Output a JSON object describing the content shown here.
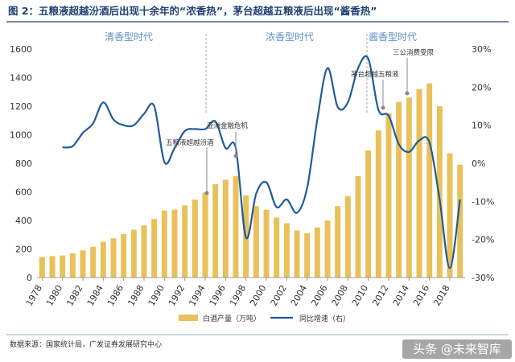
{
  "title": "图 2：五粮液超越汾酒后出现十余年的“浓香热”，茅台超越五粮液后出现“酱香热”",
  "source": "数据来源：国家统计局，广发证券发展研究中心",
  "watermark": "头条 @未来智库",
  "eras": [
    "清香型时代",
    "浓香型时代",
    "酱香型时代"
  ],
  "annotations": [
    "五粮液超越汾酒",
    "亚洲金融危机",
    "茅台超越五粮液",
    "三公消费受限"
  ],
  "legend": {
    "bar_label": "白酒产量（万吨）",
    "line_label": "同比增速（右）"
  },
  "colors": {
    "bar": "#e8c15a",
    "line": "#1f5c99",
    "title": "#1f3f74",
    "era": "#5b8fc3"
  },
  "chart_data": {
    "type": "bar",
    "x": [
      1978,
      1979,
      1980,
      1981,
      1982,
      1983,
      1984,
      1985,
      1986,
      1987,
      1988,
      1989,
      1990,
      1991,
      1992,
      1993,
      1994,
      1995,
      1996,
      1997,
      1998,
      1999,
      2000,
      2001,
      2002,
      2003,
      2004,
      2005,
      2006,
      2007,
      2008,
      2009,
      2010,
      2011,
      2012,
      2013,
      2014,
      2015,
      2016,
      2017,
      2018,
      2019
    ],
    "xticks": [
      "1978",
      "1980",
      "1982",
      "1984",
      "1986",
      "1988",
      "1990",
      "1992",
      "1994",
      "1996",
      "1998",
      "2000",
      "2002",
      "2004",
      "2006",
      "2008",
      "2010",
      "2012",
      "2014",
      "2016",
      "2018"
    ],
    "series": [
      {
        "name": "白酒产量（万吨）",
        "type": "bar",
        "axis": "left",
        "values": [
          144,
          150,
          155,
          170,
          190,
          215,
          250,
          275,
          305,
          335,
          365,
          410,
          470,
          475,
          505,
          545,
          595,
          655,
          685,
          710,
          575,
          500,
          475,
          420,
          380,
          330,
          310,
          350,
          400,
          500,
          570,
          710,
          890,
          1030,
          1150,
          1230,
          1260,
          1320,
          1360,
          1200,
          870,
          790
        ]
      },
      {
        "name": "同比增速（右）",
        "type": "line",
        "axis": "right",
        "values": [
          null,
          null,
          4.2,
          4.5,
          8.0,
          10.5,
          16.0,
          11.5,
          10.0,
          10.0,
          13.0,
          15.0,
          0.3,
          4.0,
          8.5,
          9.0,
          9.0,
          11.0,
          4.0,
          4.0,
          -19.5,
          -8.0,
          -5.0,
          -11.5,
          -9.5,
          -13.0,
          -6.5,
          11.5,
          25.0,
          14.8,
          16.0,
          25.0,
          27.5,
          14.0,
          12.5,
          5.0,
          3.0,
          6.0,
          5.5,
          -9.5,
          -27.5,
          -9.5
        ]
      }
    ],
    "yleft": {
      "ticks": [
        0,
        200,
        400,
        600,
        800,
        1000,
        1200,
        1400,
        1600
      ],
      "lim": [
        0,
        1600
      ]
    },
    "yright": {
      "ticks": [
        "30%",
        "20%",
        "10%",
        "0%",
        "-10%",
        "-20%",
        "-30%"
      ],
      "lim": [
        -30,
        30
      ]
    }
  }
}
